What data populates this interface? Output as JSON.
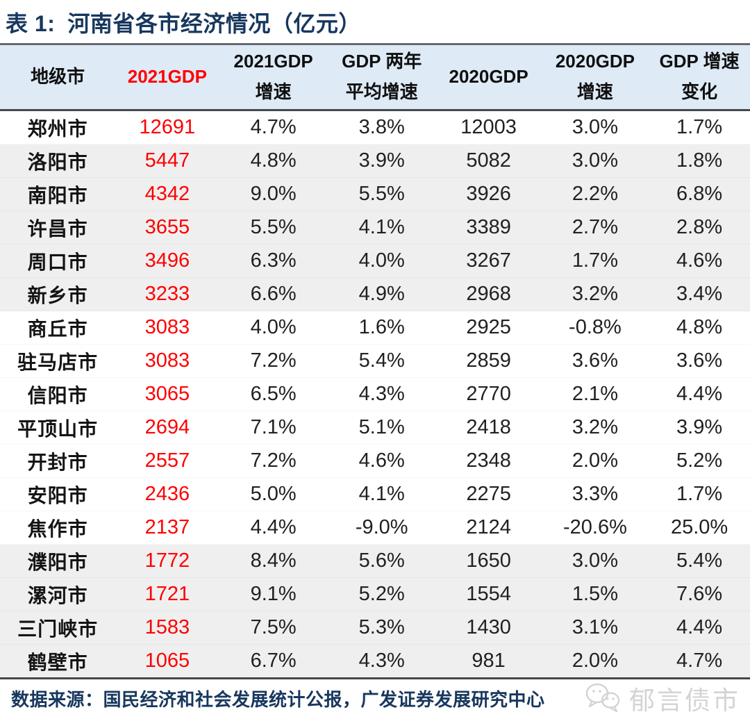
{
  "header": {
    "table_label": "表 1:",
    "title": "河南省各市经济情况（亿元）"
  },
  "chart_data": {
    "type": "table",
    "title": "表 1: 河南省各市经济情况（亿元）",
    "unit": "亿元",
    "columns": [
      "地级市",
      "2021GDP",
      "2021GDP 增速",
      "GDP 两年平均增速",
      "2020GDP",
      "2020GDP 增速",
      "GDP 增速变化"
    ],
    "column_header_lines": [
      [
        "地级市"
      ],
      [
        "2021GDP"
      ],
      [
        "2021GDP",
        "增速"
      ],
      [
        "GDP 两年",
        "平均增速"
      ],
      [
        "2020GDP"
      ],
      [
        "2020GDP",
        "增速"
      ],
      [
        "GDP 增速",
        "变化"
      ]
    ],
    "highlight_column_index": 1,
    "rows": [
      [
        "郑州市",
        "12691",
        "4.7%",
        "3.8%",
        "12003",
        "3.0%",
        "1.7%"
      ],
      [
        "洛阳市",
        "5447",
        "4.8%",
        "3.9%",
        "5082",
        "3.0%",
        "1.8%"
      ],
      [
        "南阳市",
        "4342",
        "9.0%",
        "5.5%",
        "3926",
        "2.2%",
        "6.8%"
      ],
      [
        "许昌市",
        "3655",
        "5.5%",
        "4.1%",
        "3389",
        "2.7%",
        "2.8%"
      ],
      [
        "周口市",
        "3496",
        "6.3%",
        "4.0%",
        "3267",
        "1.7%",
        "4.6%"
      ],
      [
        "新乡市",
        "3233",
        "6.6%",
        "4.9%",
        "2968",
        "3.2%",
        "3.4%"
      ],
      [
        "商丘市",
        "3083",
        "4.0%",
        "1.6%",
        "2925",
        "-0.8%",
        "4.8%"
      ],
      [
        "驻马店市",
        "3083",
        "7.2%",
        "5.4%",
        "2859",
        "3.6%",
        "3.6%"
      ],
      [
        "信阳市",
        "3065",
        "6.5%",
        "4.3%",
        "2770",
        "2.1%",
        "4.4%"
      ],
      [
        "平顶山市",
        "2694",
        "7.1%",
        "5.1%",
        "2418",
        "3.2%",
        "3.9%"
      ],
      [
        "开封市",
        "2557",
        "7.2%",
        "4.6%",
        "2348",
        "2.0%",
        "5.2%"
      ],
      [
        "安阳市",
        "2436",
        "5.0%",
        "4.1%",
        "2275",
        "3.3%",
        "1.7%"
      ],
      [
        "焦作市",
        "2137",
        "4.4%",
        "-9.0%",
        "2124",
        "-20.6%",
        "25.0%"
      ],
      [
        "濮阳市",
        "1772",
        "8.4%",
        "5.6%",
        "1650",
        "3.0%",
        "5.4%"
      ],
      [
        "漯河市",
        "1721",
        "9.1%",
        "5.2%",
        "1554",
        "1.5%",
        "7.6%"
      ],
      [
        "三门峡市",
        "1583",
        "7.5%",
        "5.3%",
        "1430",
        "3.1%",
        "4.4%"
      ],
      [
        "鹤壁市",
        "1065",
        "6.7%",
        "4.3%",
        "981",
        "2.0%",
        "4.7%"
      ]
    ]
  },
  "footer": {
    "source": "数据来源：国民经济和社会发展统计公报，广发证券发展研究中心",
    "watermark_label": "郁言债市",
    "watermark_icon": "wechat-bubbles-icon"
  },
  "colors": {
    "title_navy": "#17375E",
    "header_bg": "#DEEAF6",
    "highlight_red": "#FF0000",
    "row_band_gray": "#EFEFEF",
    "rule_dark": "#45494d",
    "watermark_gray": "#D4D4D4"
  }
}
